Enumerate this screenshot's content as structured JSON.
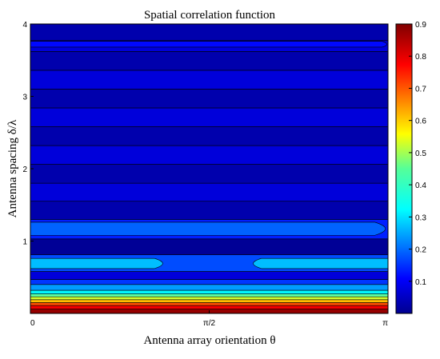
{
  "chart_data": {
    "type": "heatmap",
    "subtype": "filled-contour",
    "title": "Spatial correlation function",
    "xlabel": "Antenna array orientation  θ",
    "ylabel": "Antenna spacing  δ/λ",
    "xlim": [
      0,
      3.14159
    ],
    "ylim": [
      0,
      4
    ],
    "x_ticks": [
      {
        "value": 0,
        "label": "0"
      },
      {
        "value": 1.5708,
        "label": "π/2"
      },
      {
        "value": 3.14159,
        "label": "π"
      }
    ],
    "y_ticks": [
      {
        "value": 1,
        "label": "1"
      },
      {
        "value": 2,
        "label": "2"
      },
      {
        "value": 3,
        "label": "3"
      },
      {
        "value": 4,
        "label": "4"
      }
    ],
    "colorbar": {
      "range": [
        0,
        0.9
      ],
      "ticks": [
        "0.1",
        "0.2",
        "0.3",
        "0.4",
        "0.5",
        "0.6",
        "0.7",
        "0.8",
        "0.9"
      ],
      "colormap": "jet",
      "placement": "right"
    },
    "bands": [
      {
        "y0": 0.0,
        "y1": 0.06,
        "level": 0.88
      },
      {
        "y0": 0.06,
        "y1": 0.11,
        "level": 0.8
      },
      {
        "y0": 0.11,
        "y1": 0.15,
        "level": 0.72
      },
      {
        "y0": 0.15,
        "y1": 0.19,
        "level": 0.62
      },
      {
        "y0": 0.19,
        "y1": 0.23,
        "level": 0.52
      },
      {
        "y0": 0.23,
        "y1": 0.27,
        "level": 0.42
      },
      {
        "y0": 0.27,
        "y1": 0.32,
        "level": 0.33
      },
      {
        "y0": 0.32,
        "y1": 0.4,
        "level": 0.25
      },
      {
        "y0": 0.4,
        "y1": 0.47,
        "level": 0.16
      },
      {
        "y0": 0.47,
        "y1": 0.58,
        "level": 0.08
      },
      {
        "y0": 0.58,
        "y1": 0.81,
        "level": 0.18
      },
      {
        "y0": 0.81,
        "y1": 1.03,
        "level": 0.02
      },
      {
        "y0": 1.03,
        "y1": 1.3,
        "level": 0.14
      },
      {
        "y0": 1.3,
        "y1": 1.55,
        "level": 0.04
      },
      {
        "y0": 1.55,
        "y1": 1.8,
        "level": 0.08
      },
      {
        "y0": 1.8,
        "y1": 2.06,
        "level": 0.04
      },
      {
        "y0": 2.06,
        "y1": 2.32,
        "level": 0.08
      },
      {
        "y0": 2.32,
        "y1": 2.58,
        "level": 0.04
      },
      {
        "y0": 2.58,
        "y1": 2.84,
        "level": 0.08
      },
      {
        "y0": 2.84,
        "y1": 3.1,
        "level": 0.04
      },
      {
        "y0": 3.1,
        "y1": 3.36,
        "level": 0.08
      },
      {
        "y0": 3.36,
        "y1": 3.62,
        "level": 0.04
      },
      {
        "y0": 3.62,
        "y1": 3.77,
        "level": 0.08
      },
      {
        "y0": 3.77,
        "y1": 4.0,
        "level": 0.04
      }
    ],
    "islands": [
      {
        "name": "lobe-left-0.6",
        "x": [
          0,
          1.18
        ],
        "y": [
          0.62,
          0.76
        ],
        "level": 0.28
      },
      {
        "name": "lobe-right-0.6",
        "x": [
          1.94,
          3.14159
        ],
        "y": [
          0.62,
          0.76
        ],
        "level": 0.28
      },
      {
        "name": "lobe-1.15",
        "x": [
          0,
          3.14159
        ],
        "y": [
          1.08,
          1.26
        ],
        "level": 0.2
      },
      {
        "name": "lobe-3.7",
        "x": [
          0,
          3.14159
        ],
        "y": [
          3.68,
          3.76
        ],
        "level": 0.12
      }
    ]
  }
}
